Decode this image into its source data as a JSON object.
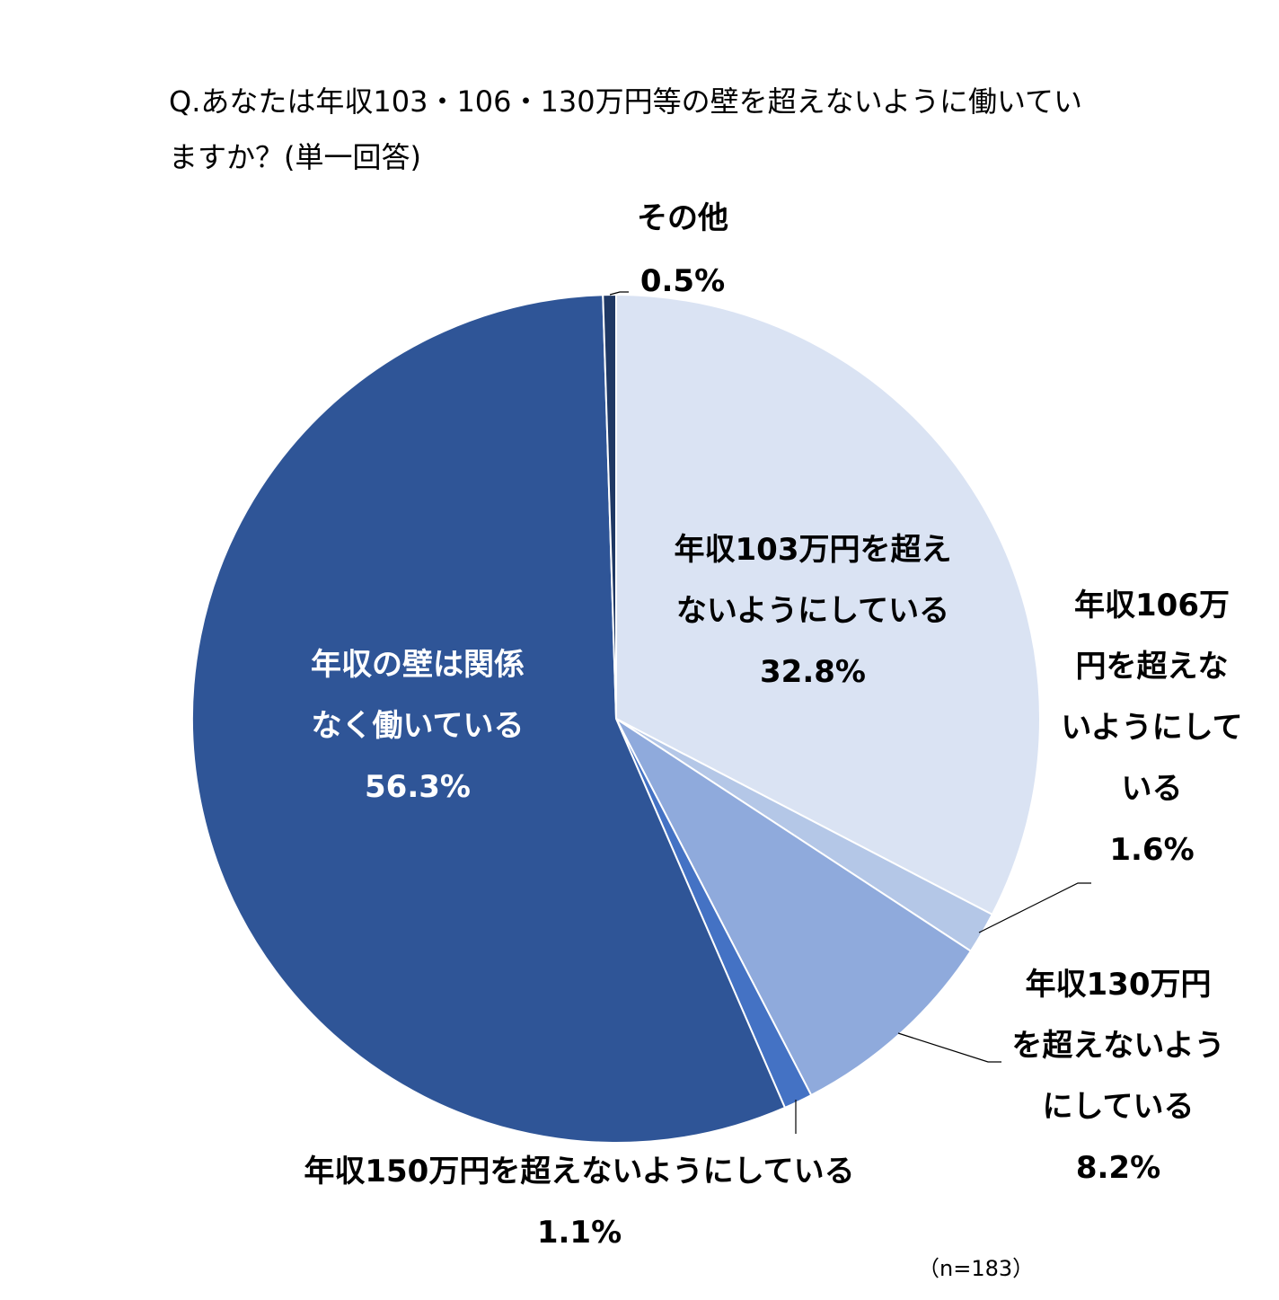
{
  "chart_data": {
    "type": "pie",
    "title": "Q.あなたは年収103・106・130万円等の壁を超えないように働いていますか？(単一回答)",
    "note": "（n=183）",
    "slices": [
      {
        "label_lines": [
          "年収103万円を超え",
          "ないようにしている"
        ],
        "value": 32.8,
        "value_text": "32.8%",
        "color": "#dae3f3"
      },
      {
        "label_lines": [
          "年収106万",
          "円を超えな",
          "いようにして",
          "いる"
        ],
        "value": 1.6,
        "value_text": "1.6%",
        "color": "#b4c7e7"
      },
      {
        "label_lines": [
          "年収130万円",
          "を超えないよう",
          "にしている"
        ],
        "value": 8.2,
        "value_text": "8.2%",
        "color": "#8faadc"
      },
      {
        "label_lines": [
          "年収150万円を超えないようにしている"
        ],
        "value": 1.1,
        "value_text": "1.1%",
        "color": "#4472c4"
      },
      {
        "label_lines": [
          "年収の壁は関係",
          "なく働いている"
        ],
        "value": 56.3,
        "value_text": "56.3%",
        "color": "#2f5597"
      },
      {
        "label_lines": [
          "その他"
        ],
        "value": 0.5,
        "value_text": "0.5%",
        "color": "#1f3864"
      }
    ]
  }
}
